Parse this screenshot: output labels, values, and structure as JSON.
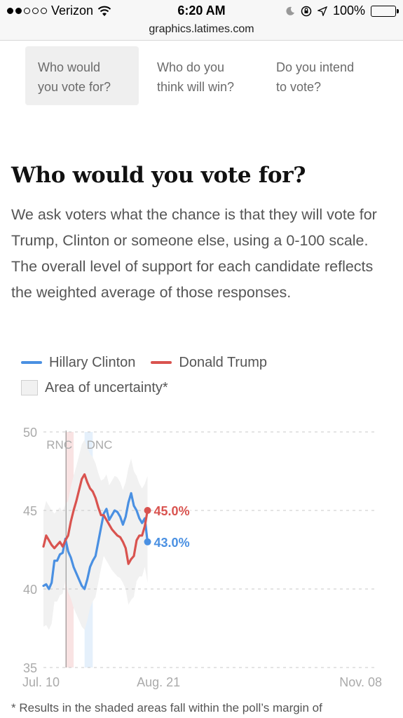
{
  "status_bar": {
    "carrier": "Verizon",
    "time": "6:20 AM",
    "battery": "100%",
    "icons": [
      "signal-dots-icon",
      "wifi-icon",
      "moon-icon",
      "orientation-lock-icon",
      "location-arrow-icon",
      "battery-icon"
    ]
  },
  "browser": {
    "url": "graphics.latimes.com"
  },
  "tabs": [
    {
      "line1": "Who would",
      "line2": "you vote for?",
      "active": true
    },
    {
      "line1": "Who do you",
      "line2": "think will win?",
      "active": false
    },
    {
      "line1": "Do you intend",
      "line2": "to vote?",
      "active": false
    }
  ],
  "title": "Who would you vote for?",
  "intro": "We ask voters what the chance is that they will vote for Trump, Clinton or someone else, using a 0-100 scale. The overall level of support for each candidate reflects the weighted average of those responses.",
  "legend": {
    "clinton": "Hillary Clinton",
    "trump": "Donald Trump",
    "uncertainty": "Area of uncertainty*"
  },
  "colors": {
    "clinton": "#4a90e2",
    "trump": "#d9534f",
    "uncertainty": "#f1f1f1",
    "rnc_band": "#f8e0e0",
    "dnc_band": "#e2eefb"
  },
  "chart_data": {
    "type": "line",
    "ylim": [
      35,
      50
    ],
    "y_ticks": [
      "35",
      "40",
      "45",
      "50"
    ],
    "x_ticks": [
      "Jul. 10",
      "Aug. 21",
      "Nov. 08"
    ],
    "x_domain": [
      "2016-07-10",
      "2016-11-08"
    ],
    "events": [
      {
        "label": "RNC",
        "start": "2016-07-18",
        "end": "2016-07-21"
      },
      {
        "label": "DNC",
        "start": "2016-07-25",
        "end": "2016-07-28"
      }
    ],
    "series": [
      {
        "name": "Hillary Clinton",
        "end_label": "43.0%",
        "points": [
          [
            "2016-07-10",
            40.2
          ],
          [
            "2016-07-11",
            40.3
          ],
          [
            "2016-07-12",
            40.0
          ],
          [
            "2016-07-13",
            40.4
          ],
          [
            "2016-07-14",
            41.8
          ],
          [
            "2016-07-15",
            41.8
          ],
          [
            "2016-07-16",
            42.2
          ],
          [
            "2016-07-17",
            42.3
          ],
          [
            "2016-07-18",
            43.2
          ],
          [
            "2016-07-19",
            42.4
          ],
          [
            "2016-07-20",
            42.0
          ],
          [
            "2016-07-21",
            41.4
          ],
          [
            "2016-07-22",
            41.0
          ],
          [
            "2016-07-23",
            40.6
          ],
          [
            "2016-07-24",
            40.2
          ],
          [
            "2016-07-25",
            40.0
          ],
          [
            "2016-07-26",
            40.6
          ],
          [
            "2016-07-27",
            41.4
          ],
          [
            "2016-07-28",
            41.8
          ],
          [
            "2016-07-29",
            42.1
          ],
          [
            "2016-07-30",
            43.0
          ],
          [
            "2016-07-31",
            43.9
          ],
          [
            "2016-08-01",
            44.8
          ],
          [
            "2016-08-02",
            45.1
          ],
          [
            "2016-08-03",
            44.4
          ],
          [
            "2016-08-04",
            44.7
          ],
          [
            "2016-08-05",
            45.0
          ],
          [
            "2016-08-06",
            44.9
          ],
          [
            "2016-08-07",
            44.6
          ],
          [
            "2016-08-08",
            44.1
          ],
          [
            "2016-08-09",
            44.6
          ],
          [
            "2016-08-10",
            45.5
          ],
          [
            "2016-08-11",
            46.1
          ],
          [
            "2016-08-12",
            45.3
          ],
          [
            "2016-08-13",
            45.0
          ],
          [
            "2016-08-14",
            44.5
          ],
          [
            "2016-08-15",
            44.2
          ],
          [
            "2016-08-16",
            44.5
          ],
          [
            "2016-08-17",
            43.0
          ]
        ]
      },
      {
        "name": "Donald Trump",
        "end_label": "45.0%",
        "points": [
          [
            "2016-07-10",
            42.7
          ],
          [
            "2016-07-11",
            43.4
          ],
          [
            "2016-07-12",
            43.1
          ],
          [
            "2016-07-13",
            42.8
          ],
          [
            "2016-07-14",
            42.6
          ],
          [
            "2016-07-15",
            42.8
          ],
          [
            "2016-07-16",
            43.0
          ],
          [
            "2016-07-17",
            42.7
          ],
          [
            "2016-07-18",
            43.1
          ],
          [
            "2016-07-19",
            43.4
          ],
          [
            "2016-07-20",
            44.3
          ],
          [
            "2016-07-21",
            45.0
          ],
          [
            "2016-07-22",
            45.6
          ],
          [
            "2016-07-23",
            46.3
          ],
          [
            "2016-07-24",
            47.0
          ],
          [
            "2016-07-25",
            47.3
          ],
          [
            "2016-07-26",
            46.8
          ],
          [
            "2016-07-27",
            46.4
          ],
          [
            "2016-07-28",
            46.2
          ],
          [
            "2016-07-29",
            45.8
          ],
          [
            "2016-07-30",
            45.2
          ],
          [
            "2016-07-31",
            44.7
          ],
          [
            "2016-08-01",
            44.7
          ],
          [
            "2016-08-02",
            44.4
          ],
          [
            "2016-08-03",
            44.1
          ],
          [
            "2016-08-04",
            43.8
          ],
          [
            "2016-08-05",
            43.6
          ],
          [
            "2016-08-06",
            43.4
          ],
          [
            "2016-08-07",
            43.3
          ],
          [
            "2016-08-08",
            43.0
          ],
          [
            "2016-08-09",
            42.6
          ],
          [
            "2016-08-10",
            41.6
          ],
          [
            "2016-08-11",
            41.9
          ],
          [
            "2016-08-12",
            42.1
          ],
          [
            "2016-08-13",
            43.1
          ],
          [
            "2016-08-14",
            43.4
          ],
          [
            "2016-08-15",
            43.4
          ],
          [
            "2016-08-16",
            44.0
          ],
          [
            "2016-08-17",
            45.0
          ]
        ]
      }
    ]
  },
  "footnote": "* Results in the shaded areas fall within the poll’s margin of"
}
